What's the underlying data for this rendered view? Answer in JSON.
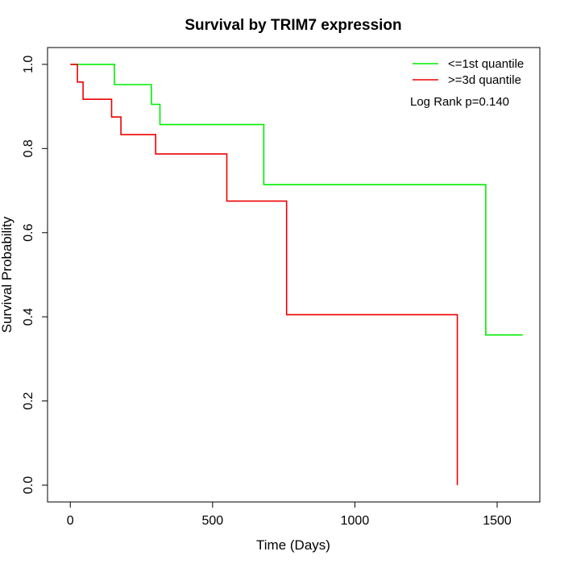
{
  "chart_data": {
    "type": "line",
    "title": "Survival by TRIM7 expression",
    "xlabel": "Time (Days)",
    "ylabel": "Survival Probability",
    "xlim": [
      -80,
      1650
    ],
    "ylim": [
      -0.04,
      1.04
    ],
    "xticks": [
      0,
      500,
      1000,
      1500
    ],
    "xtick_labels": [
      "0",
      "500",
      "1000",
      "1500"
    ],
    "yticks": [
      0.0,
      0.2,
      0.4,
      0.6,
      0.8,
      1.0
    ],
    "ytick_labels": [
      "0.0",
      "0.2",
      "0.4",
      "0.6",
      "0.8",
      "1.0"
    ],
    "grid": false,
    "legend_position": "top-right",
    "annotation": "Log Rank p=0.140",
    "series": [
      {
        "name": "<=1st quantile",
        "color": "#00ee00",
        "step": true,
        "points": [
          [
            0,
            1.0
          ],
          [
            155,
            1.0
          ],
          [
            155,
            0.952
          ],
          [
            285,
            0.952
          ],
          [
            285,
            0.905
          ],
          [
            315,
            0.905
          ],
          [
            315,
            0.857
          ],
          [
            680,
            0.857
          ],
          [
            680,
            0.714
          ],
          [
            1460,
            0.714
          ],
          [
            1460,
            0.357
          ],
          [
            1590,
            0.357
          ]
        ]
      },
      {
        "name": ">=3d quantile",
        "color": "#ee0000",
        "step": true,
        "points": [
          [
            0,
            1.0
          ],
          [
            25,
            1.0
          ],
          [
            25,
            0.958
          ],
          [
            45,
            0.958
          ],
          [
            45,
            0.917
          ],
          [
            145,
            0.917
          ],
          [
            145,
            0.875
          ],
          [
            178,
            0.875
          ],
          [
            178,
            0.833
          ],
          [
            300,
            0.833
          ],
          [
            300,
            0.787
          ],
          [
            550,
            0.787
          ],
          [
            550,
            0.675
          ],
          [
            760,
            0.675
          ],
          [
            760,
            0.405
          ],
          [
            1360,
            0.405
          ],
          [
            1360,
            0.0
          ]
        ]
      }
    ]
  }
}
